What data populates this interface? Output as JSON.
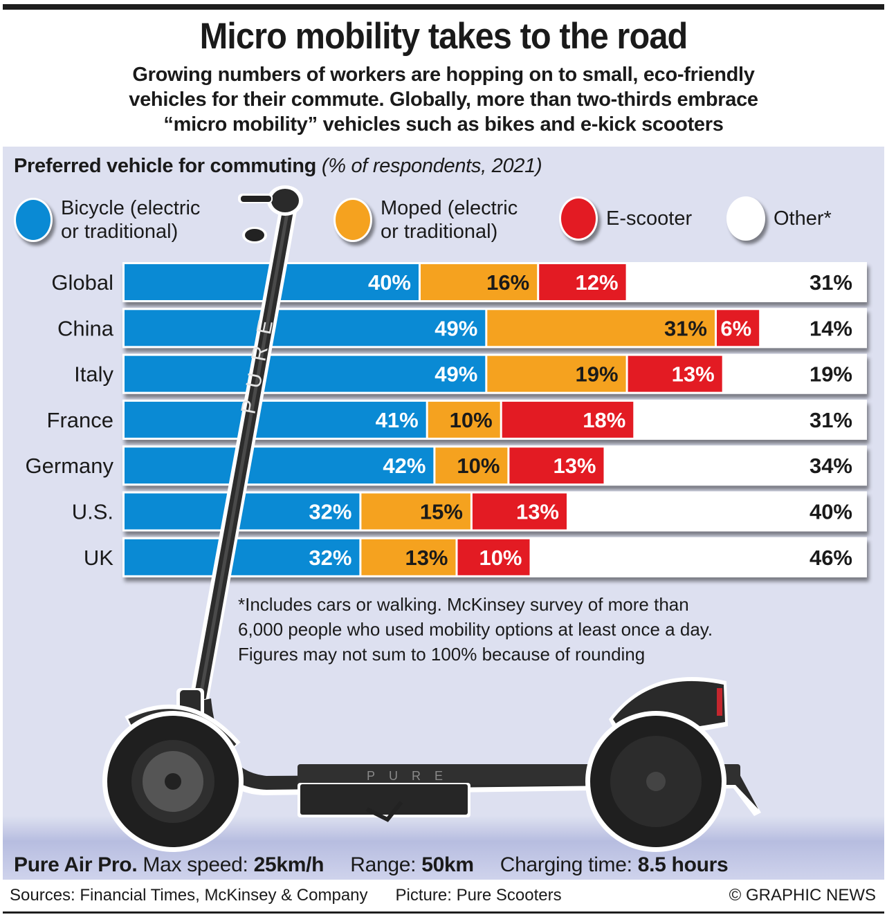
{
  "title": "Micro mobility takes to the road",
  "subtitle_lines": [
    "Growing numbers of workers are hopping on to small, eco-friendly",
    "vehicles for their commute. Globally, more than two-thirds embrace",
    "“micro mobility” vehicles such as bikes and e-kick scooters"
  ],
  "chart_heading": {
    "bold": "Preferred vehicle for commuting",
    "italic": "(% of respondents, 2021)"
  },
  "legend": [
    {
      "line1": "Bicycle (electric",
      "line2": "or traditional)",
      "color": "#0a8ad4"
    },
    {
      "line1": "Moped (electric",
      "line2": "or traditional)",
      "color": "#f5a21f"
    },
    {
      "line1": "E-scooter",
      "line2": "",
      "color": "#e31b23"
    },
    {
      "line1": "Other*",
      "line2": "",
      "color": "#ffffff"
    }
  ],
  "chart_data": {
    "type": "bar",
    "orientation": "horizontal",
    "stacked": true,
    "title": "Preferred vehicle for commuting",
    "subtitle": "(% of respondents, 2021)",
    "xlabel": "",
    "ylabel": "",
    "unit": "%",
    "xlim": [
      0,
      100
    ],
    "grid": false,
    "legend_position": "top",
    "categories": [
      "Global",
      "China",
      "Italy",
      "France",
      "Germany",
      "U.S.",
      "UK"
    ],
    "series": [
      {
        "name": "Bicycle (electric or traditional)",
        "color": "#0a8ad4",
        "label_color": "#ffffff",
        "values": [
          40,
          49,
          49,
          41,
          42,
          32,
          32
        ]
      },
      {
        "name": "Moped (electric or traditional)",
        "color": "#f5a21f",
        "label_color": "#1a1a1a",
        "values": [
          16,
          31,
          19,
          10,
          10,
          15,
          13
        ]
      },
      {
        "name": "E-scooter",
        "color": "#e31b23",
        "label_color": "#ffffff",
        "values": [
          12,
          6,
          13,
          18,
          13,
          13,
          10
        ]
      },
      {
        "name": "Other*",
        "color": "#ffffff",
        "label_color": "#1a1a1a",
        "values": [
          31,
          14,
          19,
          31,
          34,
          40,
          46
        ]
      }
    ]
  },
  "footnote_lines": [
    "*Includes cars or walking. McKinsey survey of more than",
    "6,000 people who used mobility options at least once a day.",
    "Figures may not sum to 100% because of rounding"
  ],
  "specs": {
    "model": "Pure Air Pro.",
    "speed_label": "Max speed:",
    "speed_value": "25km/h",
    "range_label": "Range:",
    "range_value": "50km",
    "charge_label": "Charging time:",
    "charge_value": "8.5 hours"
  },
  "scooter_brand": "PURE",
  "credits": {
    "sources": "Sources: Financial Times, McKinsey & Company",
    "picture": "Picture: Pure Scooters",
    "copyright": "© GRAPHIC NEWS"
  }
}
